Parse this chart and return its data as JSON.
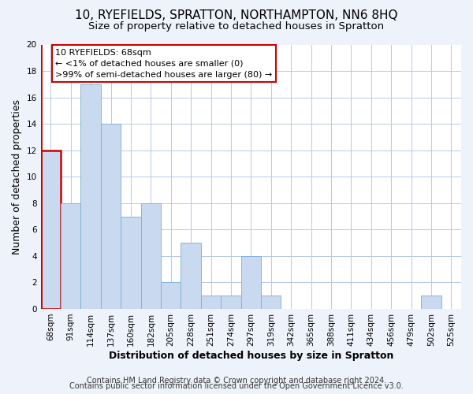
{
  "title": "10, RYEFIELDS, SPRATTON, NORTHAMPTON, NN6 8HQ",
  "subtitle": "Size of property relative to detached houses in Spratton",
  "xlabel": "Distribution of detached houses by size in Spratton",
  "ylabel": "Number of detached properties",
  "bin_labels": [
    "68sqm",
    "91sqm",
    "114sqm",
    "137sqm",
    "160sqm",
    "182sqm",
    "205sqm",
    "228sqm",
    "251sqm",
    "274sqm",
    "297sqm",
    "319sqm",
    "342sqm",
    "365sqm",
    "388sqm",
    "411sqm",
    "434sqm",
    "456sqm",
    "479sqm",
    "502sqm",
    "525sqm"
  ],
  "bar_values": [
    12,
    8,
    17,
    14,
    7,
    8,
    2,
    5,
    1,
    1,
    4,
    1,
    0,
    0,
    0,
    0,
    0,
    0,
    0,
    1,
    0
  ],
  "bar_color": "#c9d9f0",
  "bar_edge_color": "#7aafd4",
  "highlight_bin": 0,
  "highlight_edge_color": "#cc0000",
  "annotation_text": "10 RYEFIELDS: 68sqm\n← <1% of detached houses are smaller (0)\n>99% of semi-detached houses are larger (80) →",
  "annotation_box_color": "white",
  "annotation_box_edge_color": "#cc0000",
  "ylim": [
    0,
    20
  ],
  "yticks": [
    0,
    2,
    4,
    6,
    8,
    10,
    12,
    14,
    16,
    18,
    20
  ],
  "footer_lines": [
    "Contains HM Land Registry data © Crown copyright and database right 2024.",
    "Contains public sector information licensed under the Open Government Licence v3.0."
  ],
  "background_color": "#eef2fb",
  "plot_background_color": "white",
  "grid_color": "#b8c8e8",
  "title_fontsize": 11,
  "subtitle_fontsize": 9.5,
  "axis_label_fontsize": 9,
  "tick_fontsize": 7.5,
  "annotation_fontsize": 8,
  "footer_fontsize": 7
}
